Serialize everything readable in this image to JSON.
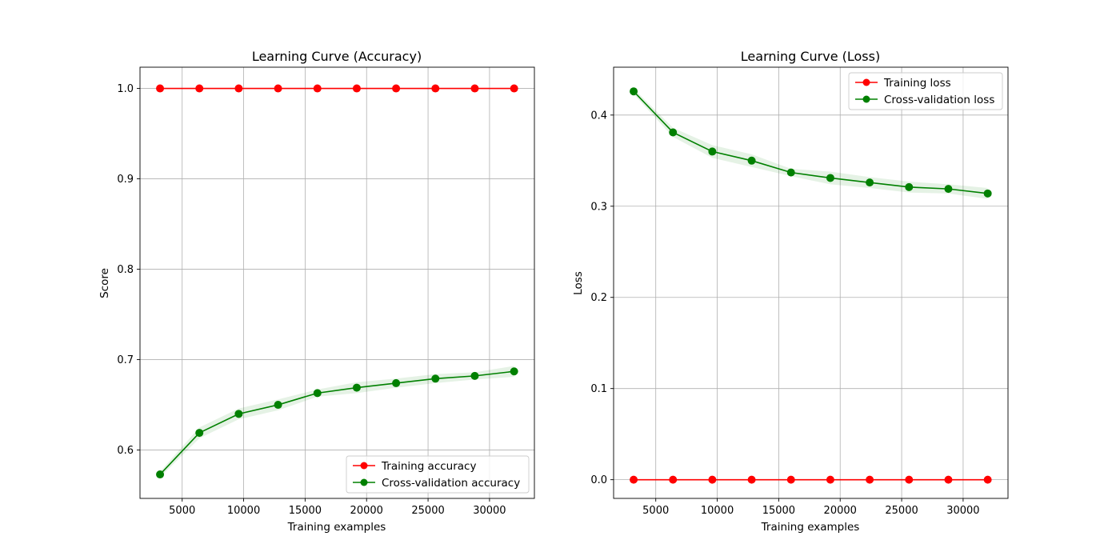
{
  "chart_data": [
    {
      "type": "line",
      "title": "Learning Curve (Accuracy)",
      "xlabel": "Training examples",
      "ylabel": "Score",
      "xlim": [
        1570,
        33650
      ],
      "ylim": [
        0.5465,
        1.0235
      ],
      "xticks": [
        5000,
        10000,
        15000,
        20000,
        25000,
        30000
      ],
      "yticks": [
        0.6,
        0.7,
        0.8,
        0.9,
        1.0
      ],
      "ytick_labels": [
        "0.6",
        "0.7",
        "0.8",
        "0.9",
        "1.0"
      ],
      "grid": true,
      "legend_position": "lower right",
      "x": [
        3200,
        6400,
        9600,
        12800,
        16000,
        19200,
        22400,
        25600,
        28800,
        32000
      ],
      "series": [
        {
          "name": "Training accuracy",
          "color": "#ff0000",
          "marker": "circle",
          "values": [
            1.0,
            1.0,
            1.0,
            1.0,
            1.0,
            1.0,
            1.0,
            1.0,
            1.0,
            1.0
          ],
          "band": null
        },
        {
          "name": "Cross-validation accuracy",
          "color": "#008000",
          "marker": "circle",
          "values": [
            0.573,
            0.619,
            0.64,
            0.65,
            0.663,
            0.669,
            0.674,
            0.679,
            0.682,
            0.687
          ],
          "band": [
            0.003,
            0.006,
            0.006,
            0.006,
            0.004,
            0.006,
            0.005,
            0.005,
            0.004,
            0.006
          ]
        }
      ]
    },
    {
      "type": "line",
      "title": "Learning Curve (Loss)",
      "xlabel": "Training examples",
      "ylabel": "Loss",
      "xlim": [
        1570,
        33650
      ],
      "ylim": [
        -0.0205,
        0.4525
      ],
      "xticks": [
        5000,
        10000,
        15000,
        20000,
        25000,
        30000
      ],
      "yticks": [
        0.0,
        0.1,
        0.2,
        0.3,
        0.4
      ],
      "ytick_labels": [
        "0.0",
        "0.1",
        "0.2",
        "0.3",
        "0.4"
      ],
      "grid": true,
      "legend_position": "upper right",
      "x": [
        3200,
        6400,
        9600,
        12800,
        16000,
        19200,
        22400,
        25600,
        28800,
        32000
      ],
      "series": [
        {
          "name": "Training loss",
          "color": "#ff0000",
          "marker": "circle",
          "values": [
            0.0,
            0.0,
            0.0,
            0.0,
            0.0,
            0.0,
            0.0,
            0.0,
            0.0,
            0.0
          ],
          "band": null
        },
        {
          "name": "Cross-validation loss",
          "color": "#008000",
          "marker": "circle",
          "values": [
            0.426,
            0.381,
            0.36,
            0.35,
            0.337,
            0.331,
            0.326,
            0.321,
            0.319,
            0.314
          ],
          "band": [
            0.003,
            0.005,
            0.007,
            0.007,
            0.004,
            0.007,
            0.006,
            0.006,
            0.005,
            0.006
          ]
        }
      ]
    }
  ]
}
